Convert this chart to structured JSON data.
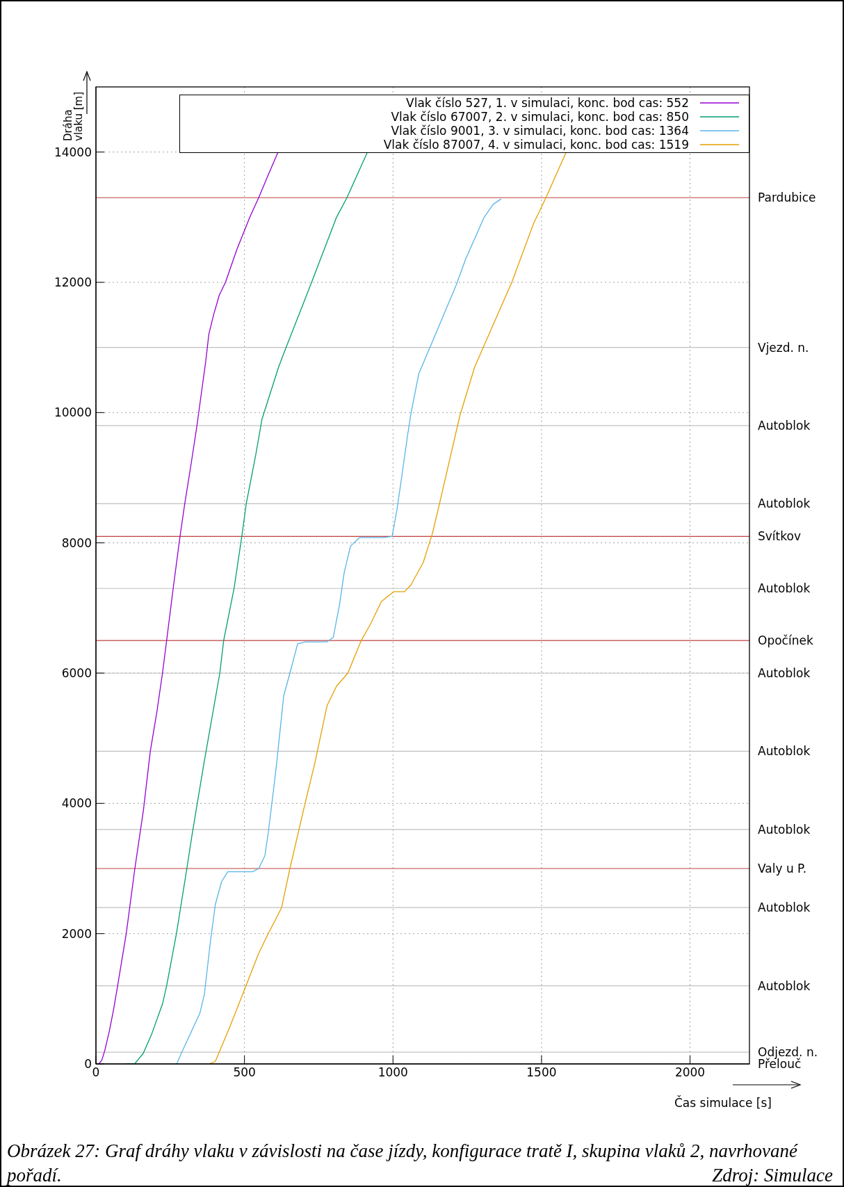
{
  "chart_data": {
    "type": "line",
    "xlabel": "Čas simulace [s]",
    "ylabel": "Dráha vlaku [m]",
    "xlim": [
      0,
      2200
    ],
    "xticks": [
      0,
      500,
      1000,
      1500,
      2000
    ],
    "ylim": [
      0,
      15000
    ],
    "yticks": [
      0,
      2000,
      4000,
      6000,
      8000,
      10000,
      12000,
      14000
    ],
    "grid": true,
    "legend": "top right",
    "series": [
      {
        "name": "Vlak číslo 527, 1. v simulaci, konc. bod cas: 552",
        "color": "#9400d3",
        "x": [
          10,
          20,
          30,
          45,
          60,
          73,
          102,
          131,
          160,
          183,
          205,
          224,
          238,
          260,
          283,
          299,
          320,
          340,
          355,
          370,
          380,
          396,
          415,
          436,
          474,
          518,
          548,
          580,
          613
        ],
        "values": [
          0,
          60,
          210,
          500,
          850,
          1200,
          2000,
          3000,
          3900,
          4800,
          5400,
          6000,
          6500,
          7300,
          8100,
          8600,
          9200,
          9800,
          10300,
          10800,
          11200,
          11500,
          11800,
          12000,
          12500,
          13000,
          13300,
          13650,
          14000
        ]
      },
      {
        "name": "Vlak číslo 67007, 2. v simulaci, konc. bod cas: 850",
        "color": "#009e73",
        "x": [
          98,
          130,
          159,
          187,
          224,
          238,
          271,
          306,
          323,
          363,
          417,
          430,
          465,
          491,
          506,
          538,
          559,
          615,
          640,
          726,
          810,
          845,
          914
        ],
        "values": [
          0,
          0,
          160,
          450,
          920,
          1200,
          2000,
          3000,
          3500,
          4600,
          6000,
          6500,
          7300,
          8100,
          8600,
          9350,
          9900,
          10700,
          11000,
          12000,
          13000,
          13300,
          14000
        ]
      },
      {
        "name": "Vlak číslo 9001, 3. v simulaci, konc. bod cas: 1364",
        "color": "#56b4e9",
        "x": [
          272,
          287,
          350,
          365,
          386,
          402,
          423,
          444,
          527,
          548,
          569,
          580,
          595,
          608,
          632,
          653,
          679,
          705,
          778,
          799,
          820,
          836,
          857,
          887,
          966,
          997,
          1013,
          1029,
          1049,
          1061,
          1087,
          1129,
          1212,
          1244,
          1307,
          1338,
          1364
        ],
        "values": [
          0,
          160,
          780,
          1070,
          1900,
          2450,
          2800,
          2950,
          2950,
          3000,
          3200,
          3550,
          4100,
          4600,
          5650,
          6000,
          6450,
          6480,
          6480,
          6550,
          7050,
          7550,
          7950,
          8080,
          8080,
          8100,
          8500,
          9000,
          9650,
          10000,
          10600,
          11050,
          11950,
          12350,
          13000,
          13200,
          13280
        ]
      },
      {
        "name": "Vlak číslo 87007, 4. v simulaci, konc. bod cas: 1519",
        "color": "#e69f00",
        "x": [
          381,
          402,
          449,
          501,
          548,
          580,
          625,
          653,
          704,
          736,
          778,
          810,
          848,
          893,
          924,
          961,
          1002,
          1039,
          1060,
          1102,
          1133,
          1154,
          1225,
          1275,
          1347,
          1400,
          1473,
          1515,
          1583
        ],
        "values": [
          0,
          40,
          550,
          1150,
          1700,
          2000,
          2400,
          3000,
          4000,
          4600,
          5500,
          5800,
          6000,
          6500,
          6750,
          7100,
          7250,
          7250,
          7350,
          7700,
          8150,
          8550,
          9950,
          10700,
          11450,
          12000,
          12900,
          13300,
          14000
        ]
      }
    ],
    "ref_lines": [
      {
        "axis": "y",
        "value": 0,
        "label": "Přelouč",
        "color": "#c0c0c0"
      },
      {
        "axis": "y",
        "value": 180,
        "label": "Odjezd. n.",
        "color": "#c0c0c0"
      },
      {
        "axis": "y",
        "value": 1200,
        "label": "Autoblok",
        "color": "#c0c0c0"
      },
      {
        "axis": "y",
        "value": 2400,
        "label": "Autoblok",
        "color": "#c0c0c0"
      },
      {
        "axis": "y",
        "value": 3000,
        "label": "Valy u P.",
        "color": "#c04040"
      },
      {
        "axis": "y",
        "value": 3600,
        "label": "Autoblok",
        "color": "#c0c0c0"
      },
      {
        "axis": "y",
        "value": 4800,
        "label": "Autoblok",
        "color": "#c0c0c0"
      },
      {
        "axis": "y",
        "value": 6000,
        "label": "Autoblok",
        "color": "#c0c0c0"
      },
      {
        "axis": "y",
        "value": 6500,
        "label": "Opočínek",
        "color": "#c04040"
      },
      {
        "axis": "y",
        "value": 7300,
        "label": "Autoblok",
        "color": "#c0c0c0"
      },
      {
        "axis": "y",
        "value": 8100,
        "label": "Svítkov",
        "color": "#c04040"
      },
      {
        "axis": "y",
        "value": 8600,
        "label": "Autoblok",
        "color": "#c0c0c0"
      },
      {
        "axis": "y",
        "value": 9800,
        "label": "Autoblok",
        "color": "#c0c0c0"
      },
      {
        "axis": "y",
        "value": 11000,
        "label": "Vjezd. n.",
        "color": "#c0c0c0"
      },
      {
        "axis": "y",
        "value": 13300,
        "label": "Pardubice",
        "color": "#c04040"
      }
    ],
    "annotations": [
      "Obrázek 27: Graf dráhy vlaku v závislosti na čase jízdy, konfigurace tratě I, skupina vlaků 2, navrhované pořadí.",
      "Zdroj: Simulace"
    ]
  }
}
